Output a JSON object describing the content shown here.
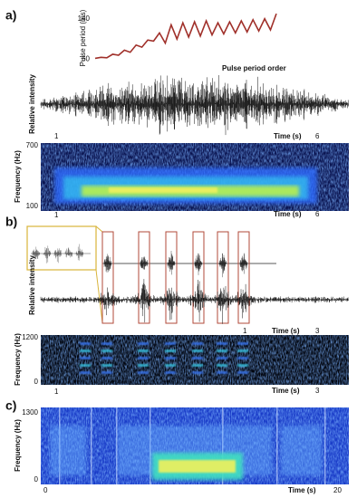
{
  "panels": [
    {
      "label": "a)",
      "pulse_period": {
        "y_label": "Pulse period (ms)",
        "x_label": "Pulse period order",
        "color": "#a0302a",
        "ylim": [
          52,
          152
        ],
        "yticks": [
          60,
          140
        ],
        "values": [
          62,
          64,
          63,
          70,
          68,
          78,
          74,
          88,
          84,
          98,
          96,
          112,
          92,
          128,
          100,
          132,
          104,
          134,
          106,
          136,
          108,
          132,
          110,
          134,
          112,
          136,
          114,
          138,
          116,
          140,
          118,
          150
        ]
      },
      "waveform": {
        "y_label": "Relative intensity",
        "x_start": "1",
        "x_label": "Time (s)",
        "x_end": "6"
      },
      "spectrogram": {
        "y_label": "Frequency (Hz)",
        "y_top": "700",
        "y_bottom": "100",
        "x_start": "1",
        "x_label": "Time (s)",
        "x_end": "6"
      }
    },
    {
      "label": "b)",
      "waveform": {
        "y_label": "Relative intensity",
        "x_start": "1",
        "x_label": "Time (s)",
        "x_end": "3"
      },
      "spectrogram": {
        "y_label": "Frequency (Hz)",
        "y_top": "1200",
        "y_bottom": "0",
        "x_start": "1",
        "x_label": "Time (s)",
        "x_end": "3"
      }
    },
    {
      "label": "c)",
      "spectrogram": {
        "y_label": "Frequency (Hz)",
        "y_top": "1300",
        "y_bottom": "0",
        "x_start": "0",
        "x_label": "Time (s)",
        "x_end": "20"
      }
    }
  ]
}
